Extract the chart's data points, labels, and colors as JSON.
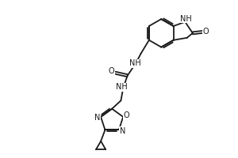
{
  "bg_color": "#ffffff",
  "line_color": "#1a1a1a",
  "line_width": 1.3,
  "font_size": 7.0,
  "fig_width": 3.0,
  "fig_height": 2.0,
  "dpi": 100,
  "xlim": [
    0,
    10
  ],
  "ylim": [
    0,
    6.67
  ]
}
